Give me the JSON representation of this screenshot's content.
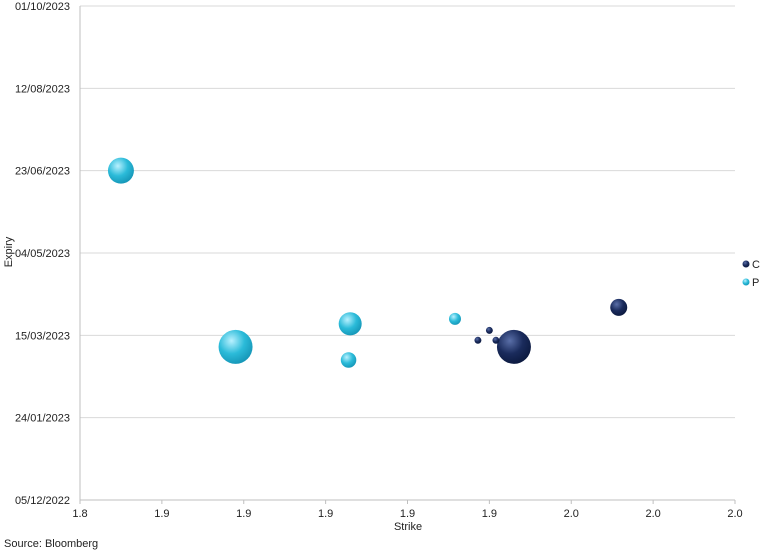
{
  "chart_data": {
    "type": "scatter",
    "subtype": "bubble",
    "xlabel": "Strike",
    "ylabel": "Expiry",
    "x_tick_labels": [
      "1.8",
      "1.9",
      "1.9",
      "1.9",
      "1.9",
      "1.9",
      "2.0",
      "2.0",
      "2.0"
    ],
    "xlim": [
      1.8,
      2.0
    ],
    "y_tick_labels": [
      "05/12/2022",
      "24/01/2023",
      "15/03/2023",
      "04/05/2023",
      "23/06/2023",
      "12/08/2023",
      "01/10/2023"
    ],
    "ylim": [
      "2022-12-05",
      "2023-10-01"
    ],
    "grid": "horizontal",
    "legend_position": "right",
    "series": [
      {
        "name": "C",
        "color": "#1a2b5c",
        "points": [
          {
            "x": 1.9325,
            "y": "2023-03-08",
            "size": 24
          },
          {
            "x": 1.9645,
            "y": "2023-04-01",
            "size": 6
          },
          {
            "x": 1.9215,
            "y": "2023-03-12",
            "size": 1
          },
          {
            "x": 1.925,
            "y": "2023-03-18",
            "size": 1
          },
          {
            "x": 1.927,
            "y": "2023-03-12",
            "size": 1
          }
        ]
      },
      {
        "name": "P",
        "color": "#2bbbd9",
        "points": [
          {
            "x": 1.8125,
            "y": "2023-06-23",
            "size": 14
          },
          {
            "x": 1.8475,
            "y": "2023-03-08",
            "size": 24
          },
          {
            "x": 1.8825,
            "y": "2023-03-22",
            "size": 11
          },
          {
            "x": 1.882,
            "y": "2023-02-28",
            "size": 5
          },
          {
            "x": 1.9145,
            "y": "2023-03-25",
            "size": 3
          }
        ]
      }
    ],
    "source": "Source: Bloomberg"
  }
}
